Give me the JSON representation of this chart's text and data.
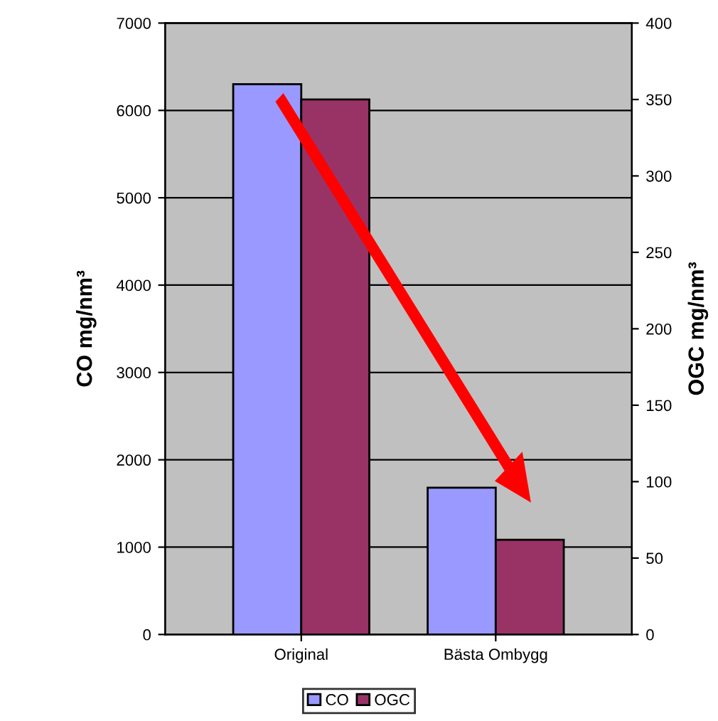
{
  "chart_data": {
    "type": "bar",
    "categories": [
      "Original",
      "Bästa Ombygg"
    ],
    "series": [
      {
        "name": "CO",
        "color": "#9999ff",
        "values": [
          6300,
          1680
        ]
      },
      {
        "name": "OGC",
        "color": "#993366",
        "values": [
          350,
          62
        ],
        "axis": "y2"
      }
    ],
    "ylabel": "CO mg/nm³",
    "y2label": "OGC mg/nm³",
    "ylim": [
      0,
      7000
    ],
    "yticks": [
      0,
      1000,
      2000,
      3000,
      4000,
      5000,
      6000,
      7000
    ],
    "y2lim": [
      0,
      400
    ],
    "y2ticks": [
      0,
      50,
      100,
      150,
      200,
      250,
      300,
      350,
      400
    ],
    "grid": "y",
    "legend": "bottom"
  }
}
